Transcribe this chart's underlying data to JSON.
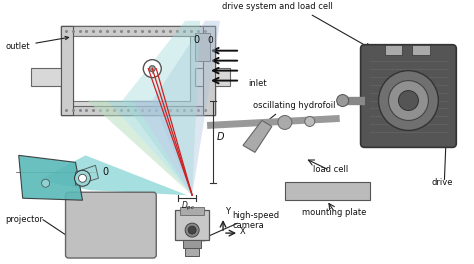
{
  "background_color": "#ffffff",
  "labels": {
    "outlet": "outlet",
    "drive_system": "drive system and load cell",
    "inlet": "inlet",
    "oscillating": "oscillating hydrofoil",
    "projector": "projector",
    "high_speed": "high-speed\ncamera",
    "load_cell": "load cell",
    "drive": "drive",
    "mounting_plate": "mounting plate",
    "D_label": "D",
    "zero_tunnel": "0",
    "zero_projector": "0"
  },
  "colors": {
    "teal_fill": "#4ec0c0",
    "teal_body": "#5ab8b8",
    "teal_light": "#9ed8d8",
    "blue_light": "#aac4e0",
    "green_light": "#b8dfc0",
    "red_line": "#cc2222",
    "text_color": "#111111",
    "frame_light": "#d8d8d8",
    "frame_dark": "#888888",
    "motor_dark": "#555555",
    "motor_mid": "#888888",
    "box_gray": "#c8c8c8"
  },
  "figsize": [
    4.74,
    2.64
  ],
  "dpi": 100
}
